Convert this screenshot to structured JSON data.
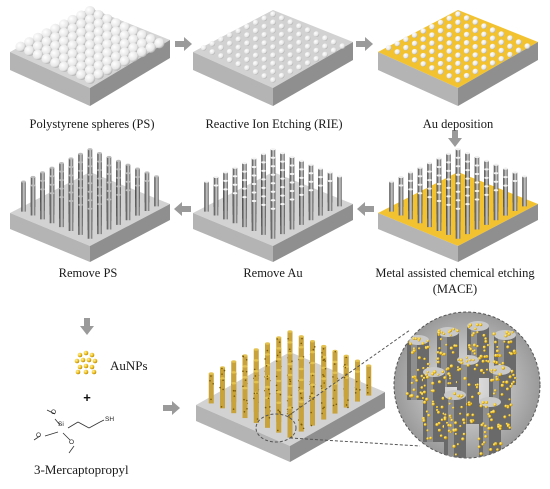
{
  "steps": [
    {
      "id": "ps",
      "caption": "Polystyrene spheres (PS)"
    },
    {
      "id": "rie",
      "caption": "Reactive Ion Etching (RIE)"
    },
    {
      "id": "au",
      "caption": "Au deposition"
    },
    {
      "id": "mace",
      "caption_line1": "Metal assisted chemical etching",
      "caption_line2": "(MACE)"
    },
    {
      "id": "removeau",
      "caption": "Remove Au"
    },
    {
      "id": "removeps",
      "caption": "Remove PS"
    }
  ],
  "reagents": {
    "nanoparticles": "AuNPs",
    "plus": "+",
    "linker": "3-Mercaptopropyl",
    "atoms": {
      "si": "Si",
      "o1": "O",
      "o2": "O",
      "o3": "O",
      "sh": "SH"
    }
  },
  "colors": {
    "substrate_top": "#d0d0d0",
    "substrate_side": "#a8a8a8",
    "gold": "#f2c230",
    "arrow": "#9a9a9a",
    "sphere": "#f4f4f4",
    "pillar": "#6e6e6e"
  },
  "icons": [
    "right-arrow-icon",
    "left-arrow-icon",
    "down-arrow-icon"
  ]
}
